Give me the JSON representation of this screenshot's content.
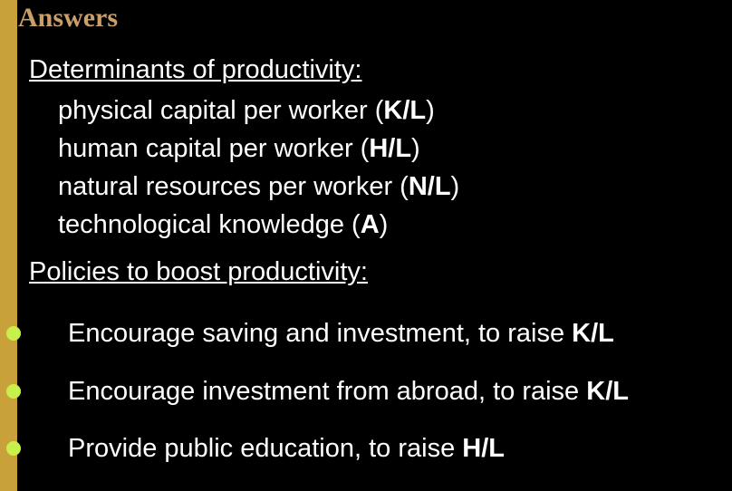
{
  "title": "Answers",
  "colors": {
    "background": "#000000",
    "left_bar": "#c9a13a",
    "title": "#c9a06a",
    "bullet": "#c8ef4a",
    "text": "#ffffff"
  },
  "determinants": {
    "heading": "Determinants of productivity:",
    "items": [
      {
        "text": "physical capital per worker (",
        "var": "K/L",
        "close": ")"
      },
      {
        "text": "human capital per worker (",
        "var": "H/L",
        "close": ")"
      },
      {
        "text": "natural resources per worker (",
        "var": "N/L",
        "close": ")"
      },
      {
        "text": "technological knowledge (",
        "var": "A",
        "close": ")"
      }
    ]
  },
  "policies": {
    "heading": "Policies to boost productivity:",
    "items": [
      {
        "text": "Encourage saving and investment, to raise ",
        "var": "K/L"
      },
      {
        "text": "Encourage investment from abroad, to raise ",
        "var": "K/L"
      },
      {
        "text": "Provide public education, to raise ",
        "var": "H/L"
      }
    ]
  }
}
